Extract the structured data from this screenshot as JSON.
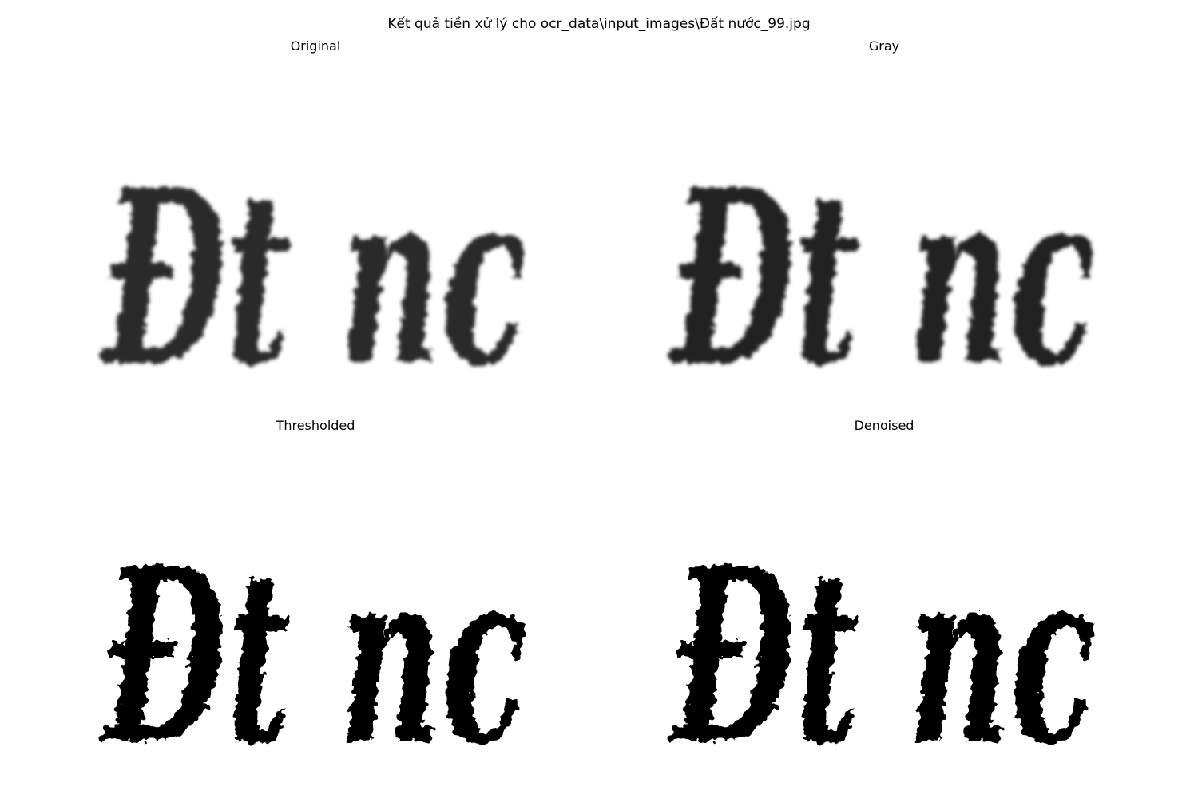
{
  "figure": {
    "suptitle": "Kết quả tiền xử lý cho ocr_data\\input_images\\Đất nước_99.jpg"
  },
  "panels": [
    {
      "title": "Original",
      "image": {
        "text": "Đt nc",
        "style": "blurred",
        "color": "#2a2a2a"
      }
    },
    {
      "title": "Gray",
      "image": {
        "text": "Đt nc",
        "style": "blurred",
        "color": "#222222"
      }
    },
    {
      "title": "Thresholded",
      "image": {
        "text": "Đt nc",
        "style": "binary",
        "color": "#000000"
      }
    },
    {
      "title": "Denoised",
      "image": {
        "text": "Đt nc",
        "style": "binary",
        "color": "#000000"
      }
    }
  ]
}
